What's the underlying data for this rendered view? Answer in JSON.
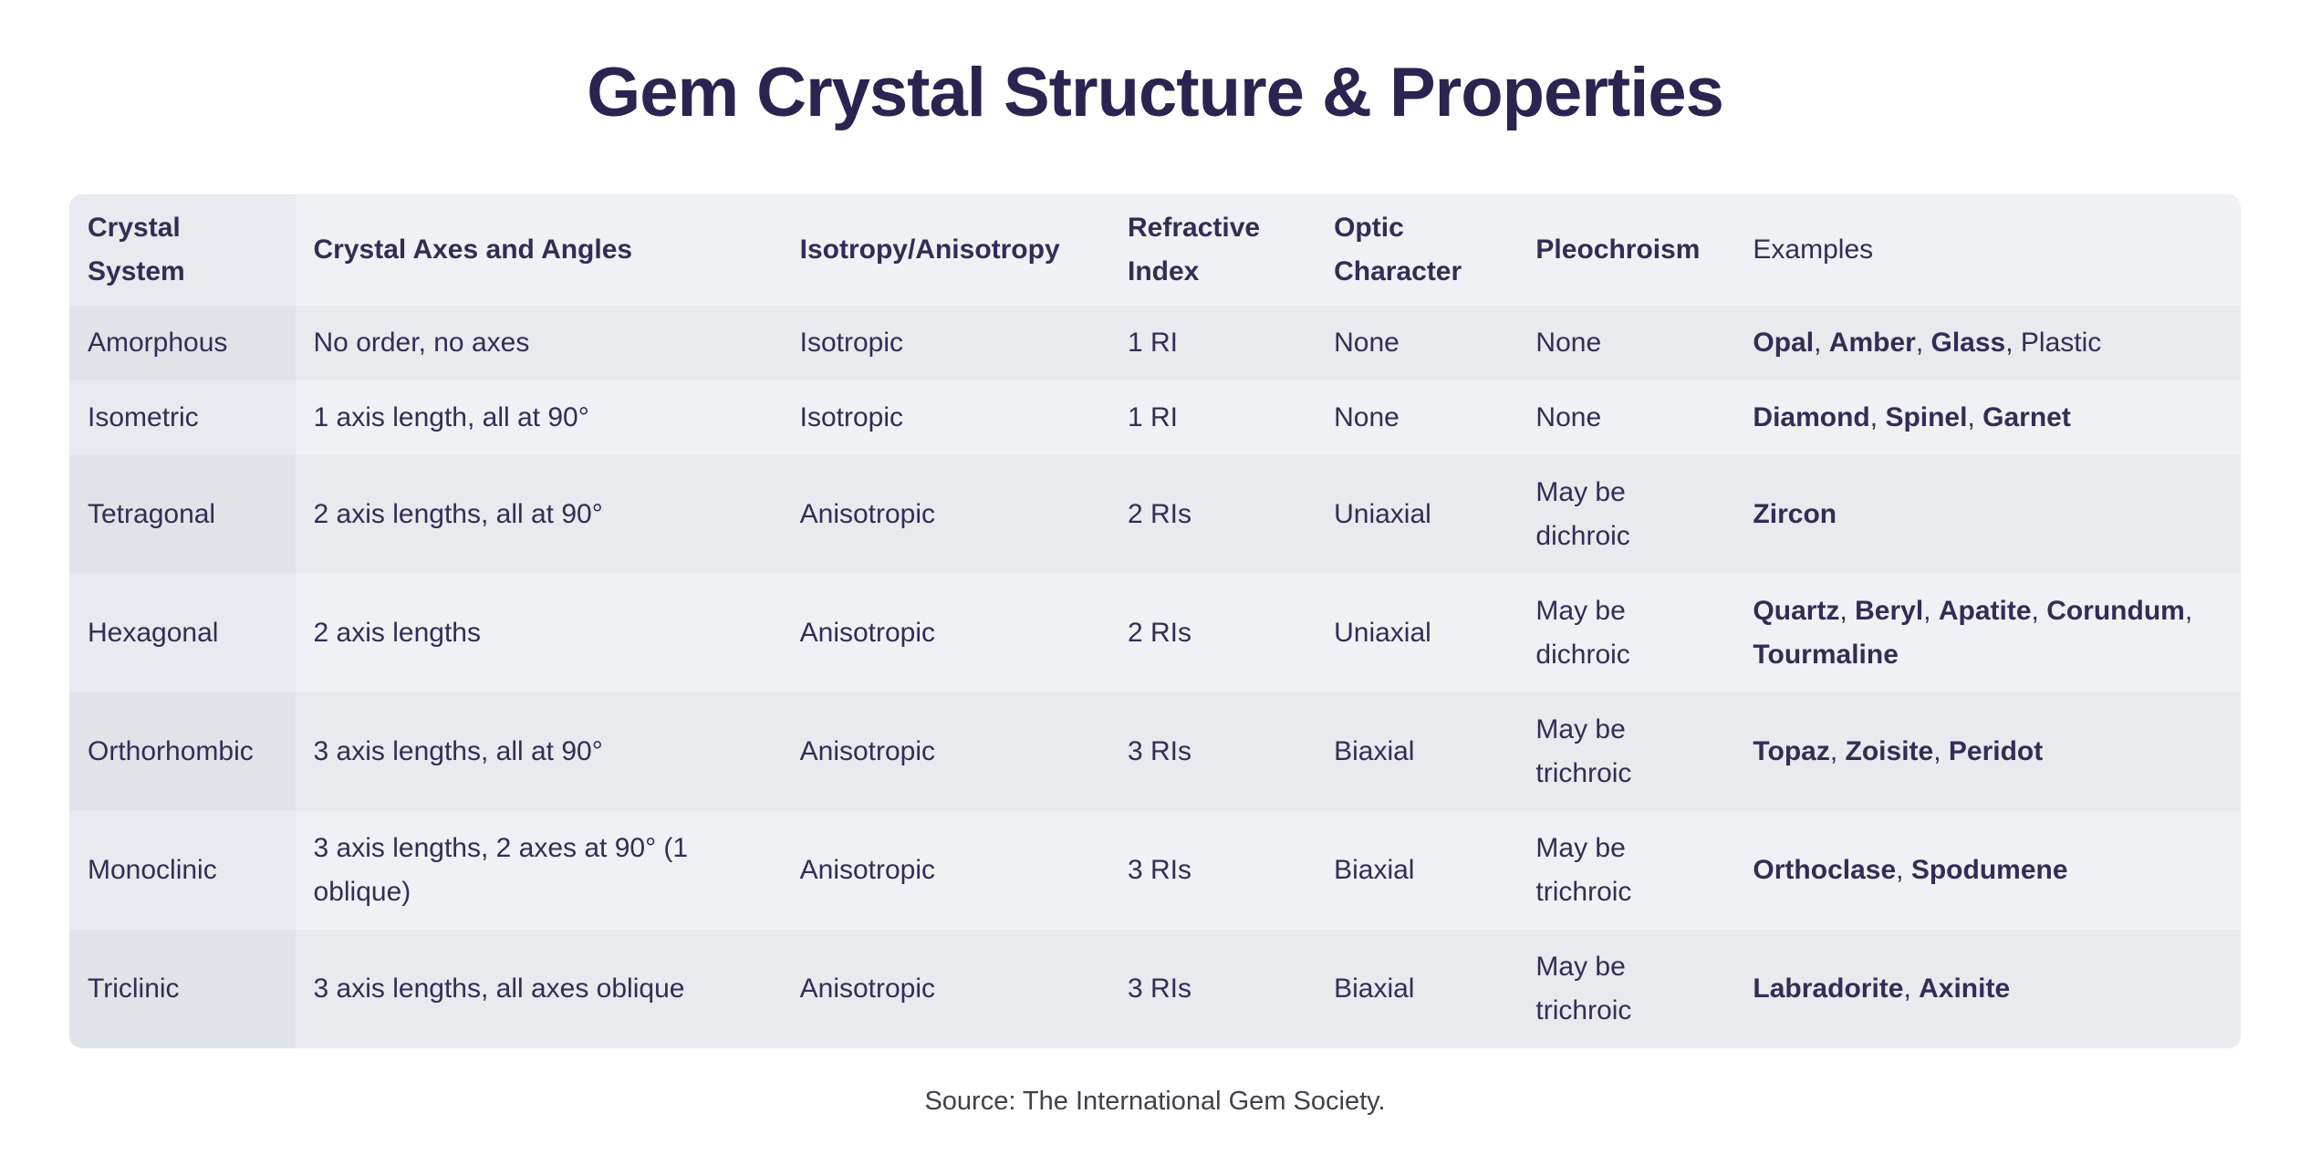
{
  "page": {
    "title": "Gem Crystal Structure & Properties",
    "source": "Source: The International Gem Society."
  },
  "colors": {
    "page_bg": "#ffffff",
    "title_text": "#2b2350",
    "body_text": "#332d55",
    "source_text": "#3f4249",
    "row_light": "#eff1f4",
    "row_dark": "#e8eaee",
    "first_col_light": "#e7eaee",
    "first_col_dark": "#e0e3e8"
  },
  "table": {
    "columns": [
      {
        "key": "crystal_system",
        "label": "Crystal System",
        "bold": true
      },
      {
        "key": "axes_angles",
        "label": "Crystal Axes and Angles",
        "bold": true
      },
      {
        "key": "isotropy",
        "label": "Isotropy/Anisotropy",
        "bold": true
      },
      {
        "key": "refractive_index",
        "label": "Refractive Index",
        "bold": true
      },
      {
        "key": "optic_character",
        "label": "Optic Character",
        "bold": true
      },
      {
        "key": "pleochroism",
        "label": "Pleochroism",
        "bold": true
      },
      {
        "key": "examples",
        "label": "Examples",
        "bold": false
      }
    ],
    "rows": [
      {
        "shade": "dark",
        "crystal_system": "Amorphous",
        "axes_angles": "No order, no axes",
        "isotropy": "Isotropic",
        "refractive_index": "1 RI",
        "optic_character": "None",
        "pleochroism": "None",
        "examples": [
          {
            "text": "Opal",
            "bold": true
          },
          {
            "text": "Amber",
            "bold": true
          },
          {
            "text": "Glass",
            "bold": true
          },
          {
            "text": "Plastic",
            "bold": false
          }
        ]
      },
      {
        "shade": "light",
        "crystal_system": "Isometric",
        "axes_angles": "1 axis length, all at 90°",
        "isotropy": "Isotropic",
        "refractive_index": "1 RI",
        "optic_character": "None",
        "pleochroism": "None",
        "examples": [
          {
            "text": "Diamond",
            "bold": true
          },
          {
            "text": "Spinel",
            "bold": true
          },
          {
            "text": "Garnet",
            "bold": true
          }
        ]
      },
      {
        "shade": "dark",
        "crystal_system": "Tetragonal",
        "axes_angles": "2 axis lengths, all at 90°",
        "isotropy": "Anisotropic",
        "refractive_index": "2 RIs",
        "optic_character": "Uniaxial",
        "pleochroism": "May be dichroic",
        "examples": [
          {
            "text": "Zircon",
            "bold": true
          }
        ]
      },
      {
        "shade": "light",
        "crystal_system": "Hexagonal",
        "axes_angles": "2 axis lengths",
        "isotropy": "Anisotropic",
        "refractive_index": "2 RIs",
        "optic_character": "Uniaxial",
        "pleochroism": "May be dichroic",
        "examples": [
          {
            "text": "Quartz",
            "bold": true
          },
          {
            "text": "Beryl",
            "bold": true
          },
          {
            "text": "Apatite",
            "bold": true
          },
          {
            "text": "Corundum",
            "bold": true
          },
          {
            "text": "Tourmaline",
            "bold": true
          }
        ]
      },
      {
        "shade": "dark",
        "crystal_system": "Orthorhombic",
        "axes_angles": "3 axis lengths, all at 90°",
        "isotropy": "Anisotropic",
        "refractive_index": "3 RIs",
        "optic_character": "Biaxial",
        "pleochroism": "May be trichroic",
        "examples": [
          {
            "text": "Topaz",
            "bold": true
          },
          {
            "text": "Zoisite",
            "bold": true
          },
          {
            "text": "Peridot",
            "bold": true
          }
        ]
      },
      {
        "shade": "light",
        "crystal_system": "Monoclinic",
        "axes_angles": "3 axis lengths, 2 axes at 90° (1 oblique)",
        "isotropy": "Anisotropic",
        "refractive_index": "3 RIs",
        "optic_character": "Biaxial",
        "pleochroism": "May be trichroic",
        "examples": [
          {
            "text": "Orthoclase",
            "bold": true
          },
          {
            "text": "Spodumene",
            "bold": true
          }
        ]
      },
      {
        "shade": "dark",
        "crystal_system": "Triclinic",
        "axes_angles": "3 axis lengths, all axes oblique",
        "isotropy": "Anisotropic",
        "refractive_index": "3 RIs",
        "optic_character": "Biaxial",
        "pleochroism": "May be trichroic",
        "examples": [
          {
            "text": "Labradorite",
            "bold": true
          },
          {
            "text": "Axinite",
            "bold": true
          }
        ]
      }
    ]
  },
  "chart_data": {
    "type": "table",
    "title": "Gem Crystal Structure & Properties",
    "columns": [
      "Crystal System",
      "Crystal Axes and Angles",
      "Isotropy/Anisotropy",
      "Refractive Index",
      "Optic Character",
      "Pleochroism",
      "Examples"
    ],
    "rows": [
      [
        "Amorphous",
        "No order, no axes",
        "Isotropic",
        "1 RI",
        "None",
        "None",
        "Opal, Amber, Glass, Plastic"
      ],
      [
        "Isometric",
        "1 axis length, all at 90°",
        "Isotropic",
        "1 RI",
        "None",
        "None",
        "Diamond, Spinel, Garnet"
      ],
      [
        "Tetragonal",
        "2 axis lengths, all at 90°",
        "Anisotropic",
        "2 RIs",
        "Uniaxial",
        "May be dichroic",
        "Zircon"
      ],
      [
        "Hexagonal",
        "2 axis lengths",
        "Anisotropic",
        "2 RIs",
        "Uniaxial",
        "May be dichroic",
        "Quartz, Beryl, Apatite, Corundum, Tourmaline"
      ],
      [
        "Orthorhombic",
        "3 axis lengths, all at 90°",
        "Anisotropic",
        "3 RIs",
        "Biaxial",
        "May be trichroic",
        "Topaz, Zoisite, Peridot"
      ],
      [
        "Monoclinic",
        "3 axis lengths, 2 axes at 90° (1 oblique)",
        "Anisotropic",
        "3 RIs",
        "Biaxial",
        "May be trichroic",
        "Orthoclase, Spodumene"
      ],
      [
        "Triclinic",
        "3 axis lengths, all axes oblique",
        "Anisotropic",
        "3 RIs",
        "Biaxial",
        "May be trichroic",
        "Labradorite, Axinite"
      ]
    ],
    "source": "Source: The International Gem Society.",
    "layout": {
      "striped_rows": true,
      "first_column_shaded": true,
      "grid": false
    }
  }
}
